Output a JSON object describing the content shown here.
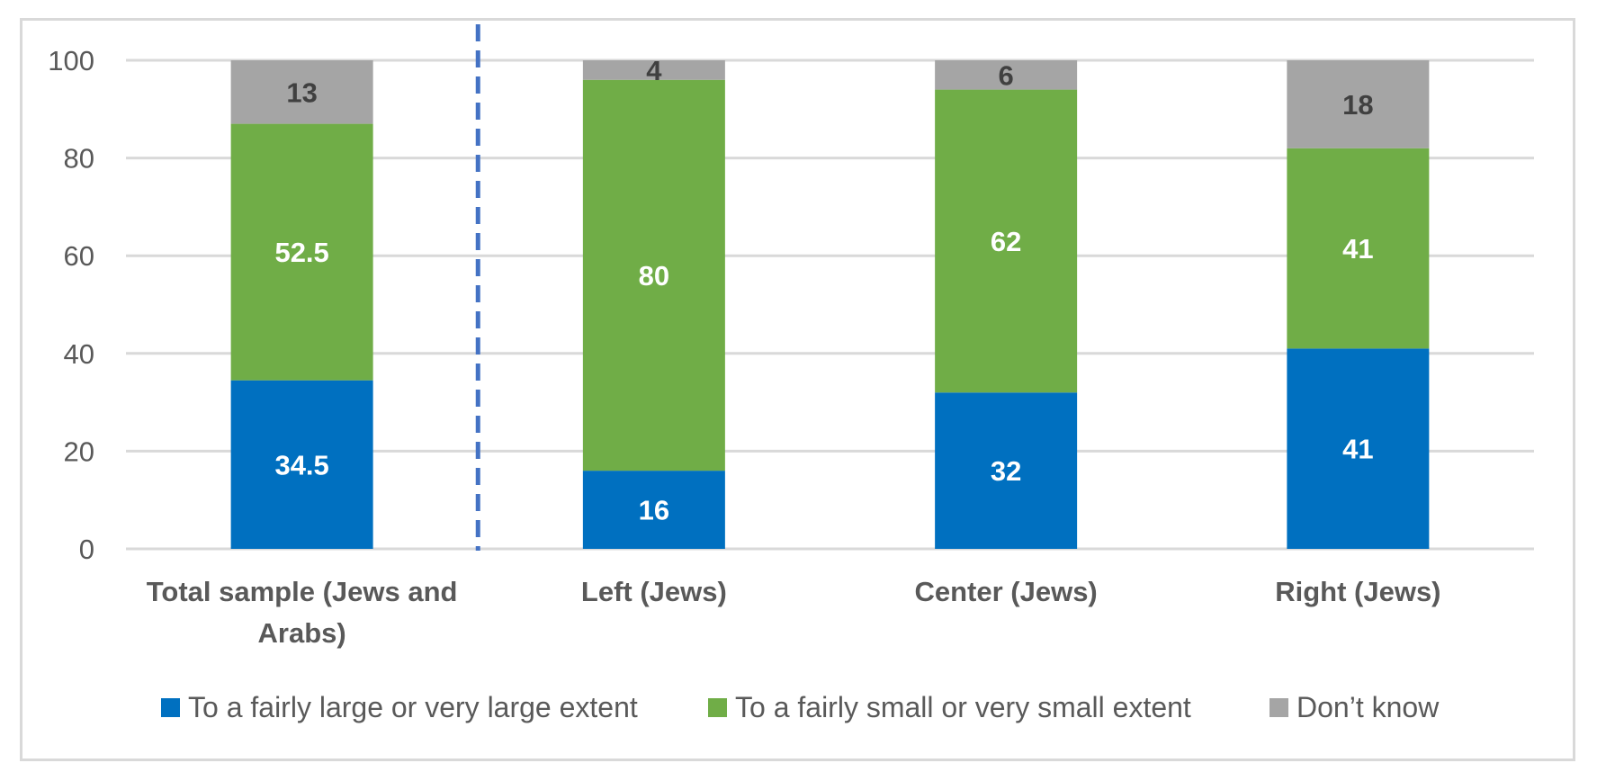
{
  "chart_data": {
    "type": "bar",
    "stacked": true,
    "categories": [
      [
        "Total sample (Jews and",
        "Arabs)"
      ],
      [
        "Left (Jews)"
      ],
      [
        "Center (Jews)"
      ],
      [
        "Right  (Jews)"
      ]
    ],
    "series": [
      {
        "name": "To a fairly large or very large extent",
        "values": [
          34.5,
          16,
          32,
          41
        ],
        "color": "#0070c0",
        "label_color": "#ffffff"
      },
      {
        "name": "To a fairly small or very small extent",
        "values": [
          52.5,
          80,
          62,
          41
        ],
        "color": "#70ad47",
        "label_color": "#ffffff"
      },
      {
        "name": "Don’t know",
        "values": [
          13,
          4,
          6,
          18
        ],
        "color": "#a5a5a5",
        "label_color": "#404040"
      }
    ],
    "value_labels": [
      [
        "34.5",
        "16",
        "32",
        "41"
      ],
      [
        "52.5",
        "80",
        "62",
        "41"
      ],
      [
        "13",
        "4",
        "6",
        "18"
      ]
    ],
    "yticks": [
      0,
      20,
      40,
      60,
      80,
      100
    ],
    "ylim": [
      0,
      100
    ],
    "grid": true,
    "grid_color": "#d9d9d9",
    "separator_color": "#4472c4",
    "separator": "dashed vertical line between first and second category",
    "legend": "bottom",
    "title": "",
    "xlabel": "",
    "ylabel": ""
  }
}
